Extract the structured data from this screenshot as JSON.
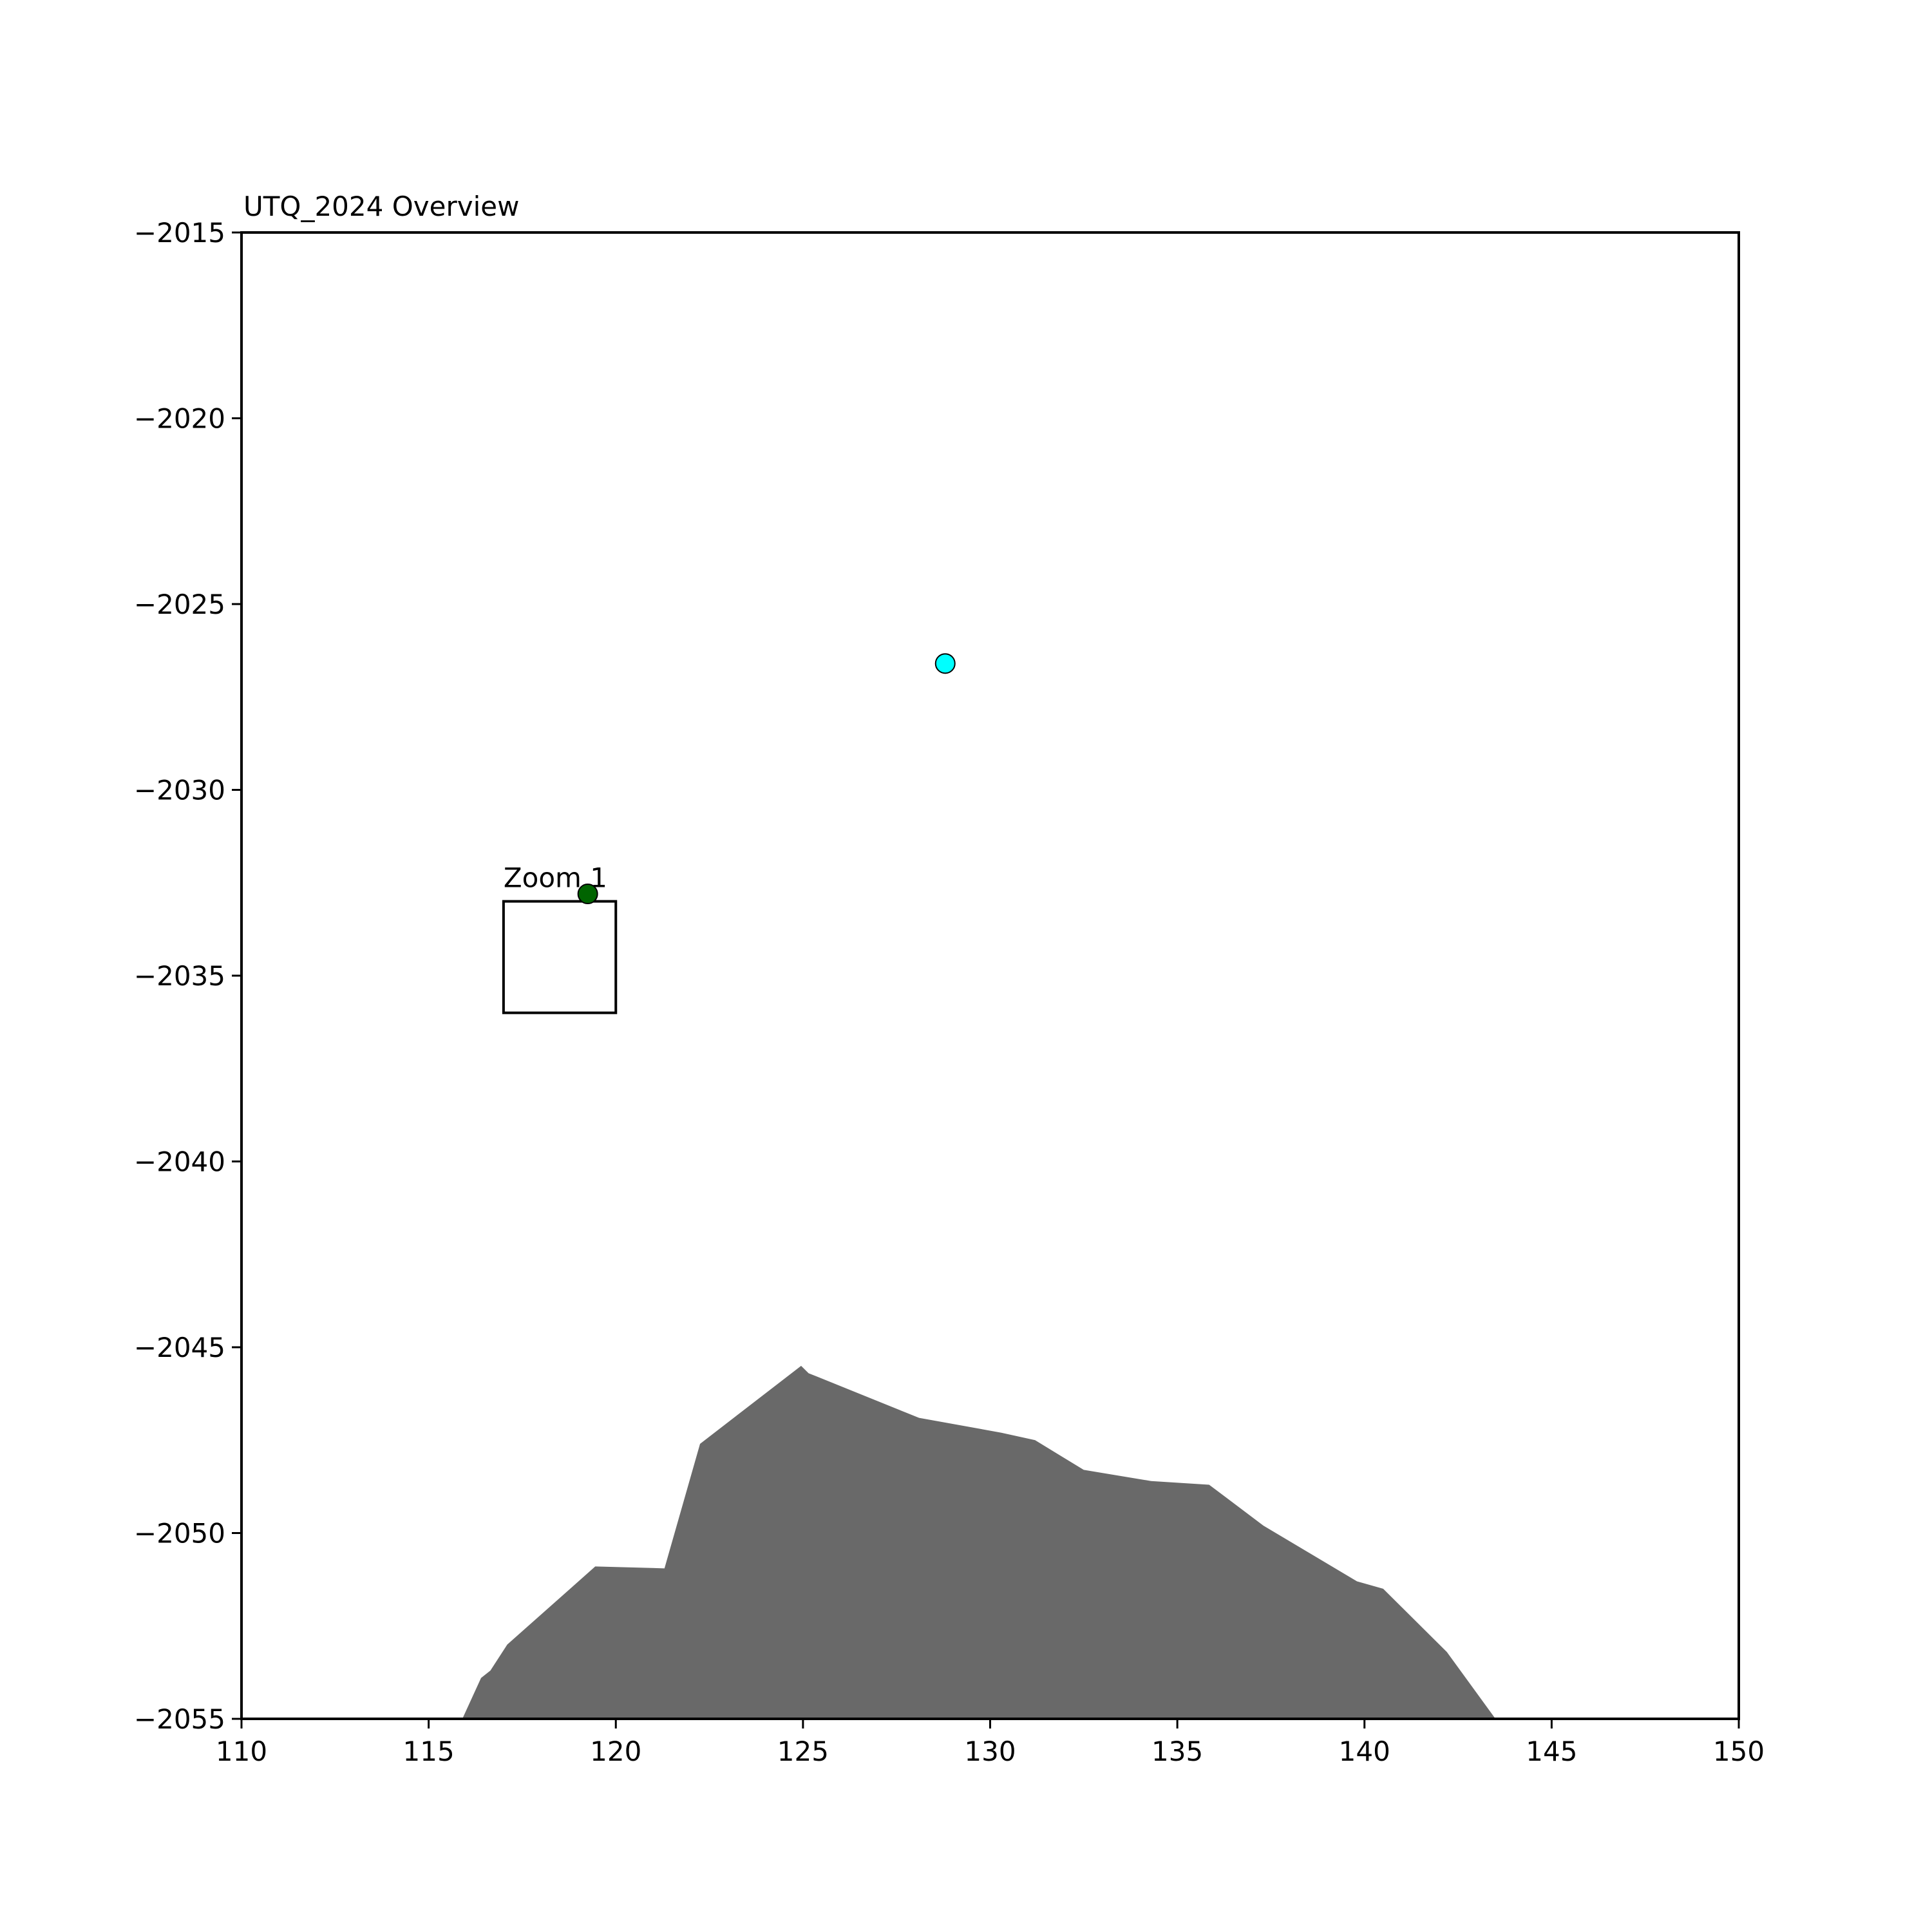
{
  "chart_data": {
    "type": "scatter",
    "title": "UTQ_2024 Overview",
    "xlabel": "",
    "ylabel": "",
    "xlim": [
      110,
      150
    ],
    "ylim": [
      -2055,
      -2015
    ],
    "grid": false,
    "xticks": [
      110,
      115,
      120,
      125,
      130,
      135,
      140,
      145,
      150
    ],
    "yticks": [
      -2015,
      -2020,
      -2025,
      -2030,
      -2035,
      -2040,
      -2045,
      -2050,
      -2055
    ],
    "polygon": {
      "color": "#696969",
      "points": [
        [
          115.9,
          -2055
        ],
        [
          116.4,
          -2053.9
        ],
        [
          116.65,
          -2053.7
        ],
        [
          117.1,
          -2053.0
        ],
        [
          119.45,
          -2050.9
        ],
        [
          121.3,
          -2050.95
        ],
        [
          122.25,
          -2047.6
        ],
        [
          124.95,
          -2045.5
        ],
        [
          125.15,
          -2045.7
        ],
        [
          125.4,
          -2045.8
        ],
        [
          128.1,
          -2046.9
        ],
        [
          130.3,
          -2047.3
        ],
        [
          131.2,
          -2047.5
        ],
        [
          132.5,
          -2048.3
        ],
        [
          134.3,
          -2048.6
        ],
        [
          135.85,
          -2048.7
        ],
        [
          137.3,
          -2049.8
        ],
        [
          139.8,
          -2051.3
        ],
        [
          140.5,
          -2051.5
        ],
        [
          142.2,
          -2053.2
        ],
        [
          143.5,
          -2055
        ]
      ]
    },
    "points": [
      {
        "x": 128.8,
        "y": -2026.6,
        "color": "#00ffff"
      },
      {
        "x": 119.25,
        "y": -2032.8,
        "color": "#006400"
      }
    ],
    "zoom_box": {
      "label": "Zoom 1",
      "x0": 117,
      "x1": 120,
      "y0": -2036,
      "y1": -2033
    }
  }
}
